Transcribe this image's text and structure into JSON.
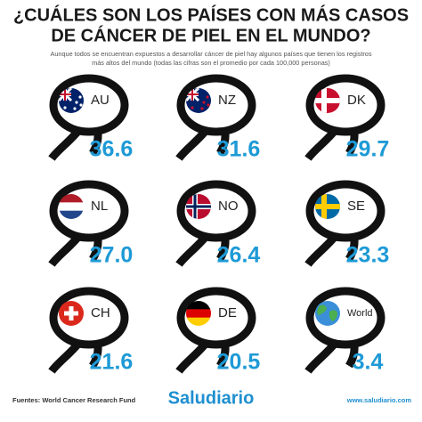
{
  "header": {
    "title_line1": "¿CUÁLES SON LOS PAÍSES CON MÁS CASOS",
    "title_line2": "DE CÁNCER DE PIEL EN EL MUNDO?",
    "subtitle_line1": "Aunque todos se encuentran expuestos a desarrollar cáncer de piel hay algunos países que tienen los registros",
    "subtitle_line2": "más altos del mundo (todas las cifras son el promedio por cada 100,000 personas)"
  },
  "items": [
    {
      "code": "AU",
      "value": "36.6"
    },
    {
      "code": "NZ",
      "value": "31.6"
    },
    {
      "code": "DK",
      "value": "29.7"
    },
    {
      "code": "NL",
      "value": "27.0"
    },
    {
      "code": "NO",
      "value": "26.4"
    },
    {
      "code": "SE",
      "value": "23.3"
    },
    {
      "code": "CH",
      "value": "21.6"
    },
    {
      "code": "DE",
      "value": "20.5"
    },
    {
      "code": "World",
      "value": "3.4"
    }
  ],
  "footer": {
    "source": "Fuentes: World Cancer Research Fund",
    "logo": "Saludiario",
    "url": "www.saludiario.com"
  }
}
